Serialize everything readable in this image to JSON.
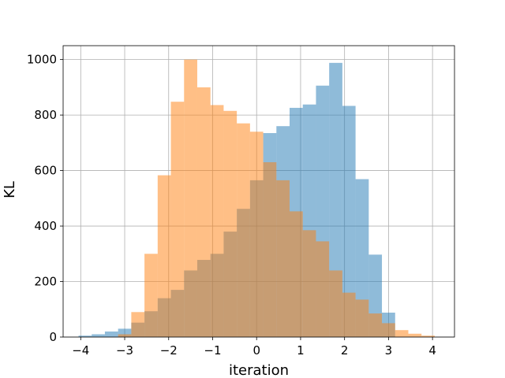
{
  "chart_data": {
    "type": "histogram",
    "xlabel": "iteration",
    "ylabel": "KL",
    "xlim": [
      -4.4,
      4.5
    ],
    "ylim": [
      0,
      1050
    ],
    "xticks": [
      -4,
      -3,
      -2,
      -1,
      0,
      1,
      2,
      3,
      4
    ],
    "xtick_labels": [
      "−4",
      "−3",
      "−2",
      "−1",
      "0",
      "1",
      "2",
      "3",
      "4"
    ],
    "yticks": [
      0,
      200,
      400,
      600,
      800,
      1000
    ],
    "ytick_labels": [
      "0",
      "200",
      "400",
      "600",
      "800",
      "1000"
    ],
    "grid": true,
    "legend": "none",
    "series": [
      {
        "color": "#1f77b4",
        "opacity": 0.5,
        "bin_edges": [
          -4.05,
          -3.75,
          -3.45,
          -3.15,
          -2.85,
          -2.55,
          -2.25,
          -1.95,
          -1.65,
          -1.35,
          -1.05,
          -0.75,
          -0.45,
          -0.15,
          0.15,
          0.45,
          0.75,
          1.05,
          1.35,
          1.65,
          1.95,
          2.25,
          2.55,
          2.85,
          3.15
        ],
        "counts": [
          5,
          10,
          20,
          30,
          52,
          93,
          140,
          170,
          240,
          278,
          300,
          380,
          462,
          565,
          735,
          760,
          826,
          838,
          906,
          988,
          833,
          569,
          297,
          88
        ]
      },
      {
        "color": "#ff7f0e",
        "opacity": 0.5,
        "bin_edges": [
          -3.15,
          -2.85,
          -2.55,
          -2.25,
          -1.95,
          -1.65,
          -1.35,
          -1.05,
          -0.75,
          -0.45,
          -0.15,
          0.15,
          0.45,
          0.75,
          1.05,
          1.35,
          1.65,
          1.95,
          2.25,
          2.55,
          2.85,
          3.15,
          3.45,
          3.75,
          4.05
        ],
        "counts": [
          10,
          90,
          300,
          583,
          848,
          1000,
          900,
          836,
          815,
          770,
          740,
          630,
          565,
          453,
          385,
          345,
          240,
          160,
          135,
          85,
          50,
          25,
          12,
          5
        ]
      }
    ]
  }
}
